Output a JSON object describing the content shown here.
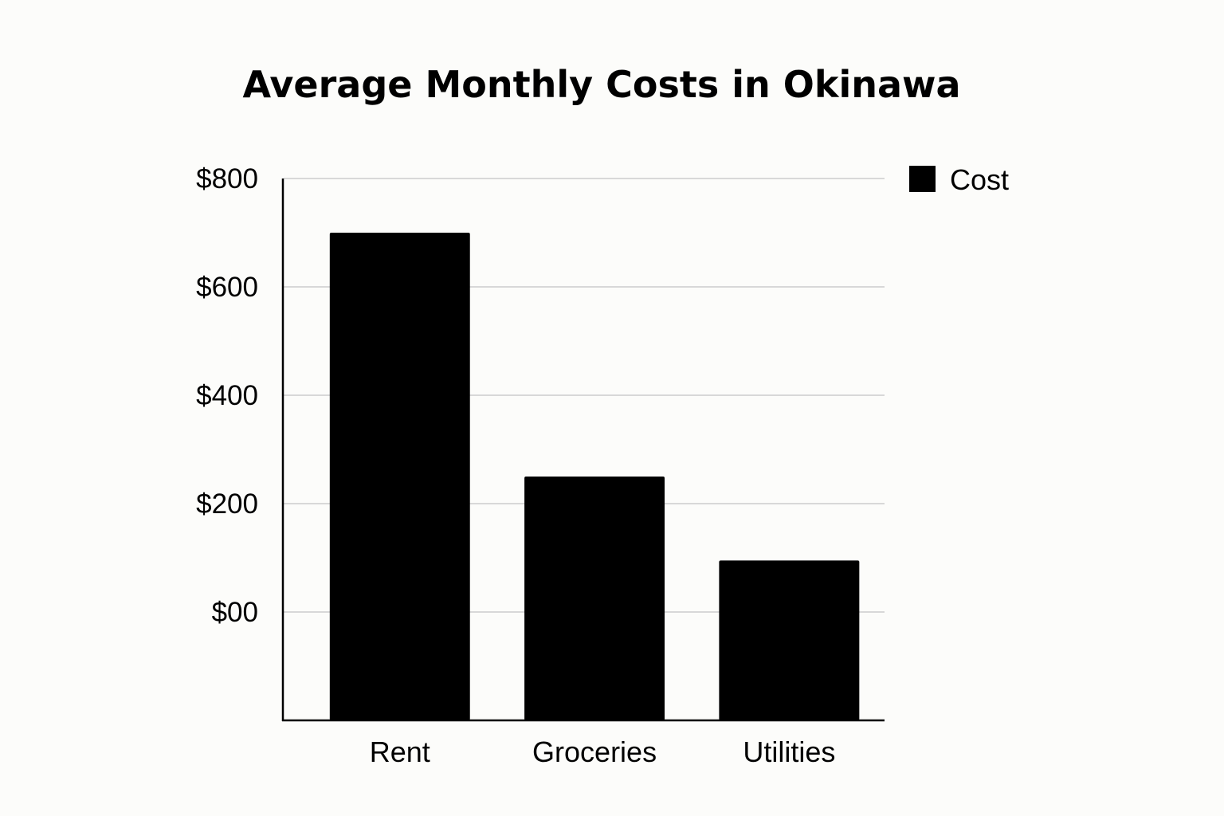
{
  "chart_data": {
    "type": "bar",
    "title": "Average Monthly Costs in Okinawa",
    "categories": [
      "Rent",
      "Groceries",
      "Utilities"
    ],
    "series": [
      {
        "name": "Cost",
        "values": [
          700,
          250,
          95
        ]
      }
    ],
    "y_ticks": [
      {
        "value": 800,
        "label": "$800"
      },
      {
        "value": 600,
        "label": "$600"
      },
      {
        "value": 400,
        "label": "$400"
      },
      {
        "value": 200,
        "label": "$200"
      },
      {
        "value": 0,
        "label": "$00"
      }
    ],
    "ylim": [
      -200,
      800
    ],
    "grid": true,
    "legend_position": "top-right",
    "bar_color": "#000000",
    "grid_color": "#cccccc"
  }
}
